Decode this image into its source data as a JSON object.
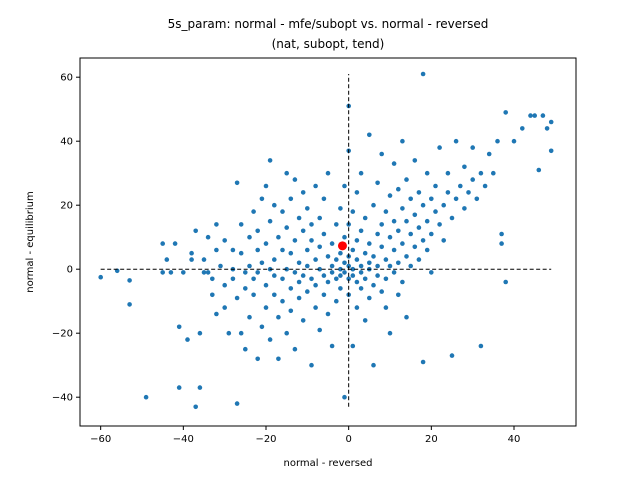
{
  "chart_data": {
    "type": "scatter",
    "title_lines": [
      "5s_param: normal - mfe/subopt vs. normal - reversed",
      "(nat, subopt, tend)"
    ],
    "xlabel": "normal - reversed",
    "ylabel": "normal - equilibrium",
    "xlim": [
      -65,
      55
    ],
    "ylim": [
      -49,
      66
    ],
    "xticks": [
      -60,
      -40,
      -20,
      0,
      20,
      40
    ],
    "yticks": [
      -40,
      -20,
      0,
      20,
      40,
      60
    ],
    "xtick_labels": [
      "−60",
      "−40",
      "−20",
      "0",
      "20",
      "40"
    ],
    "ytick_labels": [
      "−40",
      "−20",
      "0",
      "20",
      "40",
      "60"
    ],
    "point_color": "#1f77b4",
    "highlight_color": "#ff0000",
    "grid": false,
    "reference_lines": {
      "horizontal_y": 0,
      "horizontal_x_range": [
        -60,
        49
      ],
      "vertical_x": 0,
      "vertical_y_range": [
        -43,
        61
      ],
      "style": "dashed",
      "color": "#000000"
    },
    "highlight_point": {
      "x": -1.5,
      "y": 7.3
    },
    "points": [
      [
        -60,
        -2.5
      ],
      [
        -56,
        -0.5
      ],
      [
        -53,
        -3.5
      ],
      [
        -53,
        -11
      ],
      [
        -49,
        -40
      ],
      [
        -45,
        -1
      ],
      [
        -45,
        8
      ],
      [
        -44,
        3
      ],
      [
        -43,
        -1
      ],
      [
        -42,
        8
      ],
      [
        -41,
        -18
      ],
      [
        -41,
        -37
      ],
      [
        -40,
        -1
      ],
      [
        -39,
        -22
      ],
      [
        -38,
        3
      ],
      [
        -38,
        5
      ],
      [
        -37,
        -43
      ],
      [
        -37,
        12
      ],
      [
        -36,
        -37
      ],
      [
        -36,
        -20
      ],
      [
        -35,
        -1
      ],
      [
        -35,
        3
      ],
      [
        -34,
        10
      ],
      [
        -34,
        -1
      ],
      [
        -33,
        -3
      ],
      [
        -33,
        -8
      ],
      [
        -32,
        14
      ],
      [
        -32,
        6
      ],
      [
        -32,
        -14
      ],
      [
        -31,
        1
      ],
      [
        -30,
        -5
      ],
      [
        -30,
        9
      ],
      [
        -30,
        -12
      ],
      [
        -29,
        -20
      ],
      [
        -28,
        0
      ],
      [
        -28,
        6
      ],
      [
        -28,
        -3
      ],
      [
        -27,
        -42
      ],
      [
        -27,
        27
      ],
      [
        -27,
        -9
      ],
      [
        -26,
        -20
      ],
      [
        -26,
        5
      ],
      [
        -26,
        14
      ],
      [
        -25,
        -1
      ],
      [
        -25,
        -6
      ],
      [
        -25,
        -25
      ],
      [
        -24,
        10
      ],
      [
        -24,
        1
      ],
      [
        -24,
        -15
      ],
      [
        -23,
        18
      ],
      [
        -23,
        -3
      ],
      [
        -23,
        -8
      ],
      [
        -22,
        -28
      ],
      [
        -22,
        6
      ],
      [
        -22,
        -1
      ],
      [
        -22,
        12
      ],
      [
        -21,
        22
      ],
      [
        -21,
        -18
      ],
      [
        -21,
        2
      ],
      [
        -20,
        -5
      ],
      [
        -20,
        8
      ],
      [
        -20,
        -12
      ],
      [
        -20,
        26
      ],
      [
        -19,
        34
      ],
      [
        -19,
        0
      ],
      [
        -19,
        -22
      ],
      [
        -19,
        15
      ],
      [
        -18,
        -8
      ],
      [
        -18,
        3
      ],
      [
        -18,
        -2
      ],
      [
        -18,
        20
      ],
      [
        -17,
        -15
      ],
      [
        -17,
        -28
      ],
      [
        -17,
        10
      ],
      [
        -16,
        6
      ],
      [
        -16,
        -3
      ],
      [
        -16,
        18
      ],
      [
        -16,
        -10
      ],
      [
        -15,
        30
      ],
      [
        -15,
        0
      ],
      [
        -15,
        13
      ],
      [
        -15,
        -20
      ],
      [
        -14,
        5
      ],
      [
        -14,
        -6
      ],
      [
        -14,
        22
      ],
      [
        -14,
        -13
      ],
      [
        -13,
        -1
      ],
      [
        -13,
        9
      ],
      [
        -13,
        -25
      ],
      [
        -13,
        28
      ],
      [
        -12,
        2
      ],
      [
        -12,
        -4
      ],
      [
        -12,
        16
      ],
      [
        -12,
        -9
      ],
      [
        -11,
        12
      ],
      [
        -11,
        -2
      ],
      [
        -11,
        24
      ],
      [
        -11,
        -16
      ],
      [
        -10,
        6
      ],
      [
        -10,
        -7
      ],
      [
        -10,
        1
      ],
      [
        -10,
        19
      ],
      [
        -9,
        -30
      ],
      [
        -9,
        -3
      ],
      [
        -9,
        9
      ],
      [
        -9,
        14
      ],
      [
        -8,
        -12
      ],
      [
        -8,
        3
      ],
      [
        -8,
        26
      ],
      [
        -8,
        -5
      ],
      [
        -7,
        0
      ],
      [
        -7,
        7
      ],
      [
        -7,
        -19
      ],
      [
        -7,
        16
      ],
      [
        -6,
        -2
      ],
      [
        -6,
        11
      ],
      [
        -6,
        -8
      ],
      [
        -6,
        22
      ],
      [
        -5,
        4
      ],
      [
        -5,
        -4
      ],
      [
        -5,
        -14
      ],
      [
        -5,
        30
      ],
      [
        -4,
        1
      ],
      [
        -4,
        -1
      ],
      [
        -4,
        8
      ],
      [
        -4,
        -24
      ],
      [
        -3,
        3
      ],
      [
        -3,
        -3
      ],
      [
        -3,
        14
      ],
      [
        -3,
        -10
      ],
      [
        -2,
        0
      ],
      [
        -2,
        5
      ],
      [
        -2,
        -6
      ],
      [
        -2,
        19
      ],
      [
        -2,
        -2
      ],
      [
        -1,
        2
      ],
      [
        -1,
        -1
      ],
      [
        -1,
        10
      ],
      [
        -1,
        -40
      ],
      [
        -1,
        26
      ],
      [
        0,
        1
      ],
      [
        0,
        -3
      ],
      [
        0,
        4
      ],
      [
        0,
        51
      ],
      [
        0,
        -8
      ],
      [
        0,
        14
      ],
      [
        0,
        37
      ],
      [
        1,
        0
      ],
      [
        1,
        -2
      ],
      [
        1,
        6
      ],
      [
        1,
        -24
      ],
      [
        1,
        18
      ],
      [
        2,
        3
      ],
      [
        2,
        -4
      ],
      [
        2,
        9
      ],
      [
        2,
        -12
      ],
      [
        2,
        24
      ],
      [
        3,
        1
      ],
      [
        3,
        -1
      ],
      [
        3,
        12
      ],
      [
        3,
        -6
      ],
      [
        3,
        30
      ],
      [
        4,
        5
      ],
      [
        4,
        -3
      ],
      [
        4,
        16
      ],
      [
        4,
        -16
      ],
      [
        5,
        2
      ],
      [
        5,
        0
      ],
      [
        5,
        8
      ],
      [
        5,
        42
      ],
      [
        5,
        -9
      ],
      [
        6,
        4
      ],
      [
        6,
        -5
      ],
      [
        6,
        20
      ],
      [
        6,
        -30
      ],
      [
        7,
        1
      ],
      [
        7,
        11
      ],
      [
        7,
        -2
      ],
      [
        7,
        27
      ],
      [
        8,
        7
      ],
      [
        8,
        -7
      ],
      [
        8,
        14
      ],
      [
        8,
        36
      ],
      [
        9,
        3
      ],
      [
        9,
        -3
      ],
      [
        9,
        18
      ],
      [
        9,
        -12
      ],
      [
        10,
        10
      ],
      [
        10,
        1
      ],
      [
        10,
        23
      ],
      [
        10,
        -20
      ],
      [
        11,
        6
      ],
      [
        11,
        -1
      ],
      [
        11,
        15
      ],
      [
        11,
        33
      ],
      [
        12,
        2
      ],
      [
        12,
        12
      ],
      [
        12,
        -8
      ],
      [
        12,
        25
      ],
      [
        13,
        8
      ],
      [
        13,
        19
      ],
      [
        13,
        -4
      ],
      [
        13,
        40
      ],
      [
        14,
        4
      ],
      [
        14,
        15
      ],
      [
        14,
        -15
      ],
      [
        14,
        28
      ],
      [
        15,
        11
      ],
      [
        15,
        1
      ],
      [
        15,
        22
      ],
      [
        16,
        7
      ],
      [
        16,
        17
      ],
      [
        16,
        34
      ],
      [
        17,
        13
      ],
      [
        17,
        3
      ],
      [
        17,
        24
      ],
      [
        18,
        9
      ],
      [
        18,
        61
      ],
      [
        18,
        20
      ],
      [
        18,
        -29
      ],
      [
        19,
        15
      ],
      [
        19,
        6
      ],
      [
        19,
        30
      ],
      [
        20,
        11
      ],
      [
        20,
        22
      ],
      [
        20,
        -1
      ],
      [
        21,
        18
      ],
      [
        21,
        26
      ],
      [
        22,
        14
      ],
      [
        22,
        38
      ],
      [
        23,
        20
      ],
      [
        23,
        9
      ],
      [
        24,
        24
      ],
      [
        24,
        30
      ],
      [
        25,
        16
      ],
      [
        25,
        -27
      ],
      [
        26,
        22
      ],
      [
        26,
        40
      ],
      [
        27,
        26
      ],
      [
        28,
        19
      ],
      [
        28,
        32
      ],
      [
        29,
        24
      ],
      [
        30,
        28
      ],
      [
        30,
        38
      ],
      [
        31,
        22
      ],
      [
        32,
        30
      ],
      [
        32,
        -24
      ],
      [
        33,
        26
      ],
      [
        34,
        36
      ],
      [
        35,
        30
      ],
      [
        36,
        40
      ],
      [
        37,
        11
      ],
      [
        37,
        8
      ],
      [
        38,
        49
      ],
      [
        38,
        -4
      ],
      [
        40,
        40
      ],
      [
        42,
        44
      ],
      [
        44,
        48
      ],
      [
        45,
        48
      ],
      [
        46,
        31
      ],
      [
        47,
        48
      ],
      [
        48,
        44
      ],
      [
        49,
        46
      ],
      [
        49,
        37
      ]
    ]
  }
}
